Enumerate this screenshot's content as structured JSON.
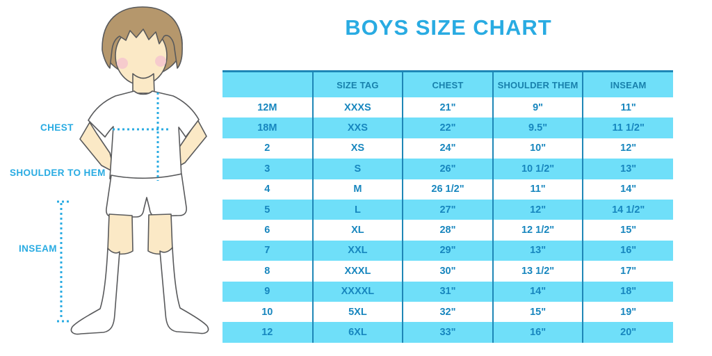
{
  "title": "BOYS SIZE CHART",
  "figure_labels": {
    "chest": "CHEST",
    "shoulder_to_hem": "SHOULDER TO HEM",
    "inseam": "INSEAM"
  },
  "colors": {
    "accent": "#29ABE2",
    "stripe": "#6FDFF9",
    "header_text": "#1880AC",
    "cell_text": "#1786BE",
    "line": "#1E86B6",
    "skin": "#FBE9C6",
    "hair": "#B5976C",
    "blush": "#F4C6CE",
    "outline": "#58595B"
  },
  "chart_data": {
    "type": "table",
    "title": "BOYS SIZE CHART",
    "columns": [
      "",
      "SIZE TAG",
      "CHEST",
      "SHOULDER THEM",
      "INSEAM"
    ],
    "rows": [
      [
        "12M",
        "XXXS",
        "21\"",
        "9\"",
        "11\""
      ],
      [
        "18M",
        "XXS",
        "22\"",
        "9.5\"",
        "11 1/2\""
      ],
      [
        "2",
        "XS",
        "24\"",
        "10\"",
        "12\""
      ],
      [
        "3",
        "S",
        "26\"",
        "10 1/2\"",
        "13\""
      ],
      [
        "4",
        "M",
        "26 1/2\"",
        "11\"",
        "14\""
      ],
      [
        "5",
        "L",
        "27\"",
        "12\"",
        "14 1/2\""
      ],
      [
        "6",
        "XL",
        "28\"",
        "12 1/2\"",
        "15\""
      ],
      [
        "7",
        "XXL",
        "29\"",
        "13\"",
        "16\""
      ],
      [
        "8",
        "XXXL",
        "30\"",
        "13 1/2\"",
        "17\""
      ],
      [
        "9",
        "XXXXL",
        "31\"",
        "14\"",
        "18\""
      ],
      [
        "10",
        "5XL",
        "32\"",
        "15\"",
        "19\""
      ],
      [
        "12",
        "6XL",
        "33\"",
        "16\"",
        "20\""
      ]
    ]
  }
}
